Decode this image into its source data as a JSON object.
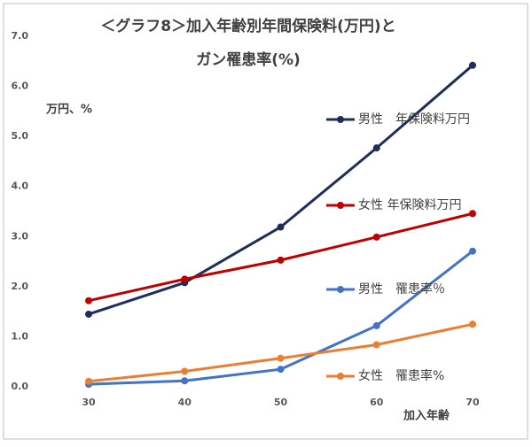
{
  "chart_data": {
    "type": "line",
    "title": [
      "＜グラフ8＞加入年齢別年間保険料(万円)と",
      "ガン罹患率(%)"
    ],
    "y_label": "万円、%",
    "x_label": "加入年齢",
    "x": [
      30,
      40,
      50,
      60,
      70
    ],
    "xlim": [
      30,
      70
    ],
    "xticks": [
      30,
      40,
      50,
      60,
      70
    ],
    "ylim": [
      0,
      7
    ],
    "yticks": [
      {
        "value": 0,
        "label": "0.0"
      },
      {
        "value": 1,
        "label": "1.0"
      },
      {
        "value": 2,
        "label": "2.0"
      },
      {
        "value": 3,
        "label": "3.0"
      },
      {
        "value": 4,
        "label": "4.0"
      },
      {
        "value": 5,
        "label": "5.0"
      },
      {
        "value": 6,
        "label": "6.0"
      },
      {
        "value": 7,
        "label": "7.0"
      }
    ],
    "series": [
      {
        "name": "男性　年保険料万円",
        "color": "#1f2d5c",
        "values": [
          1.45,
          2.08,
          3.19,
          4.77,
          6.42
        ]
      },
      {
        "name": "女性 年保険料万円",
        "color": "#c00000",
        "values": [
          1.72,
          2.15,
          2.53,
          2.99,
          3.46
        ]
      },
      {
        "name": "男性　罹患率％",
        "color": "#4472c4",
        "values": [
          0.05,
          0.12,
          0.35,
          1.22,
          2.71
        ]
      },
      {
        "name": "女性　罹患率%",
        "color": "#ed7d31",
        "values": [
          0.11,
          0.31,
          0.57,
          0.84,
          1.25
        ]
      }
    ]
  }
}
